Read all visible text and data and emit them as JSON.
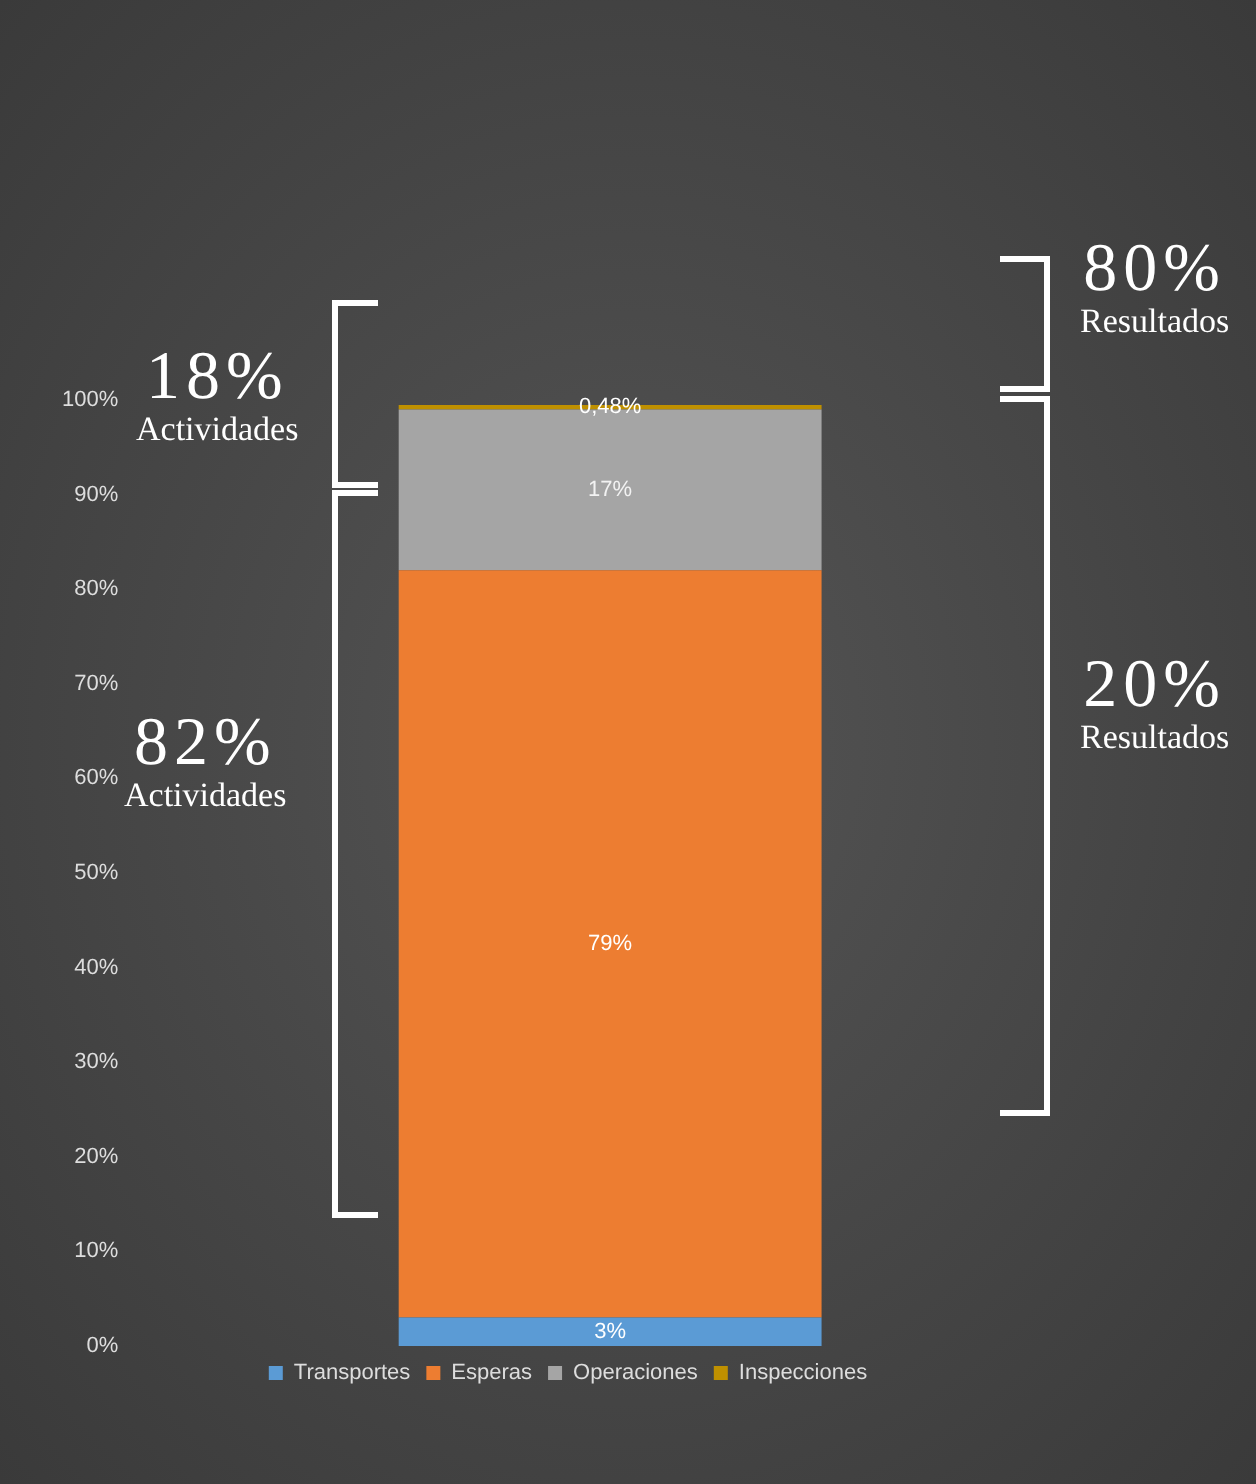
{
  "chart_data": {
    "type": "bar",
    "stacked": true,
    "categories": [
      null
    ],
    "series": [
      {
        "name": "Transportes",
        "color": "#5b9bd5",
        "values": [
          3
        ],
        "value_labels": [
          "3%"
        ]
      },
      {
        "name": "Esperas",
        "color": "#ed7d31",
        "values": [
          79
        ],
        "value_labels": [
          "79%"
        ]
      },
      {
        "name": "Operaciones",
        "color": "#a5a5a5",
        "values": [
          17
        ],
        "value_labels": [
          "17%"
        ]
      },
      {
        "name": "Inspecciones",
        "color": "#bf9000",
        "values": [
          0.48
        ],
        "value_labels": [
          "0,48%"
        ]
      }
    ],
    "ylim": [
      0,
      100
    ],
    "yticks": [
      {
        "value": 0,
        "label": "0%"
      },
      {
        "value": 10,
        "label": "10%"
      },
      {
        "value": 20,
        "label": "20%"
      },
      {
        "value": 30,
        "label": "30%"
      },
      {
        "value": 40,
        "label": "40%"
      },
      {
        "value": 50,
        "label": "50%"
      },
      {
        "value": 60,
        "label": "60%"
      },
      {
        "value": 70,
        "label": "70%"
      },
      {
        "value": 80,
        "label": "80%"
      },
      {
        "value": 90,
        "label": "90%"
      },
      {
        "value": 100,
        "label": "100%"
      }
    ],
    "tick_labels": "y",
    "legend": "bottom",
    "annotations": [
      "18%",
      "Actividades",
      "82%",
      "Actividades",
      "80%",
      "Resultados",
      "20%",
      "Resultados"
    ]
  }
}
